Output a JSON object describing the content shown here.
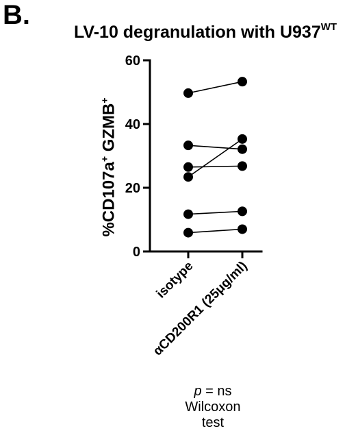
{
  "panel_label": "B.",
  "chart_data": {
    "type": "line",
    "title": "LV-10 degranulation with U937",
    "title_superscript": "WT",
    "ylabel": "%CD107a",
    "ylabel_sup1": "+",
    "ylabel_part2": " GZMB",
    "ylabel_sup2": "+",
    "xlabel": "",
    "categories": [
      "isotype",
      "αCD200R1 (25μg/ml)"
    ],
    "ylim": [
      0,
      60
    ],
    "yticks": [
      "0",
      "20",
      "40",
      "60"
    ],
    "paired_values": [
      [
        49.7,
        53.3
      ],
      [
        33.3,
        32.1
      ],
      [
        26.5,
        26.8
      ],
      [
        23.4,
        35.3
      ],
      [
        11.7,
        12.6
      ],
      [
        5.9,
        7.0
      ]
    ],
    "marker_color": "#000000",
    "line_color": "#000000"
  },
  "stats": {
    "p_symbol": "p",
    "p_text": " = ns",
    "test": "Wilcoxon test"
  }
}
